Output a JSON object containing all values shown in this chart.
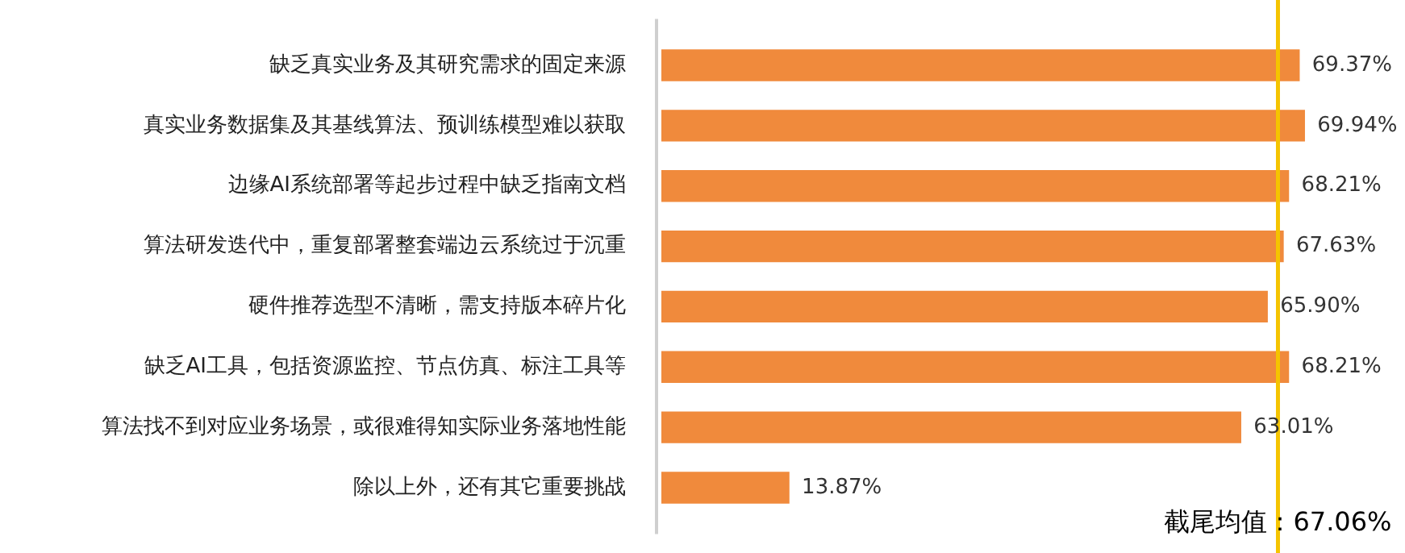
{
  "chart_data": {
    "type": "bar",
    "orientation": "horizontal",
    "categories": [
      "缺乏真实业务及其研究需求的固定来源",
      "真实业务数据集及其基线算法、预训练模型难以获取",
      "边缘AI系统部署等起步过程中缺乏指南文档",
      "算法研发迭代中，重复部署整套端边云系统过于沉重",
      "硬件推荐选型不清晰，需支持版本碎片化",
      "缺乏AI工具，包括资源监控、节点仿真、标注工具等",
      "算法找不到对应业务场景，或很难得知实际业务落地性能",
      "除以上外，还有其它重要挑战"
    ],
    "values": [
      69.37,
      69.94,
      68.21,
      67.63,
      65.9,
      68.21,
      63.01,
      13.87
    ],
    "value_labels": [
      "69.37%",
      "69.94%",
      "68.21%",
      "67.63%",
      "65.90%",
      "68.21%",
      "63.01%",
      "13.87%"
    ],
    "color": "#f08a3c",
    "ref_lines": [
      {
        "axis": "x",
        "value": 67.06,
        "label": "截尾均值：67.06%",
        "color": "#f5c400"
      }
    ],
    "legend": false
  }
}
